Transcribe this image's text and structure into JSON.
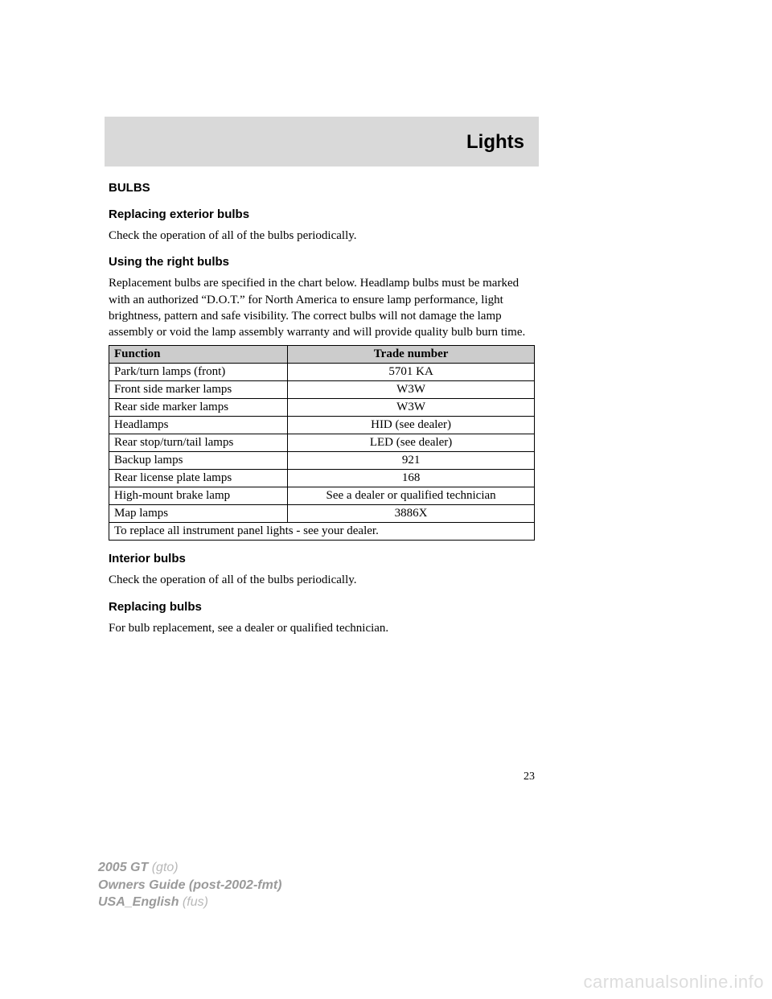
{
  "header": {
    "title": "Lights"
  },
  "sections": {
    "bulbs": "BULBS",
    "replacing_exterior": "Replacing exterior bulbs",
    "replacing_exterior_body": "Check the operation of all of the bulbs periodically.",
    "using_right": "Using the right bulbs",
    "using_right_body": "Replacement bulbs are specified in the chart below. Headlamp bulbs must be marked with an authorized “D.O.T.” for North America to ensure lamp performance, light brightness, pattern and safe visibility. The correct bulbs will not damage the lamp assembly or void the lamp assembly warranty and will provide quality bulb burn time.",
    "interior_bulbs": "Interior bulbs",
    "interior_bulbs_body": "Check the operation of all of the bulbs periodically.",
    "replacing_bulbs": "Replacing bulbs",
    "replacing_bulbs_body": "For bulb replacement, see a dealer or qualified technician."
  },
  "table": {
    "columns": [
      "Function",
      "Trade number"
    ],
    "rows": [
      [
        "Park/turn lamps (front)",
        "5701 KA"
      ],
      [
        "Front side marker lamps",
        "W3W"
      ],
      [
        "Rear side marker lamps",
        "W3W"
      ],
      [
        "Headlamps",
        "HID (see dealer)"
      ],
      [
        "Rear stop/turn/tail lamps",
        "LED (see dealer)"
      ],
      [
        "Backup lamps",
        "921"
      ],
      [
        "Rear license plate lamps",
        "168"
      ],
      [
        "High-mount brake lamp",
        "See a dealer or qualified technician"
      ],
      [
        "Map lamps",
        "3886X"
      ]
    ],
    "footer_row": "To replace all instrument panel lights - see your dealer.",
    "header_bg": "#cccccc",
    "border_color": "#000000"
  },
  "page_number": "23",
  "footer": {
    "line1_bold": "2005 GT",
    "line1_light": " (gto)",
    "line2_bold": "Owners Guide (post-2002-fmt)",
    "line3_bold": "USA_English",
    "line3_light": " (fus)"
  },
  "watermark": "carmanualsonline.info",
  "styles": {
    "page_bg": "#ffffff",
    "band_bg": "#d9d9d9",
    "body_font_size_pt": 15,
    "heading_font_family": "Arial",
    "body_font_family": "Georgia"
  }
}
